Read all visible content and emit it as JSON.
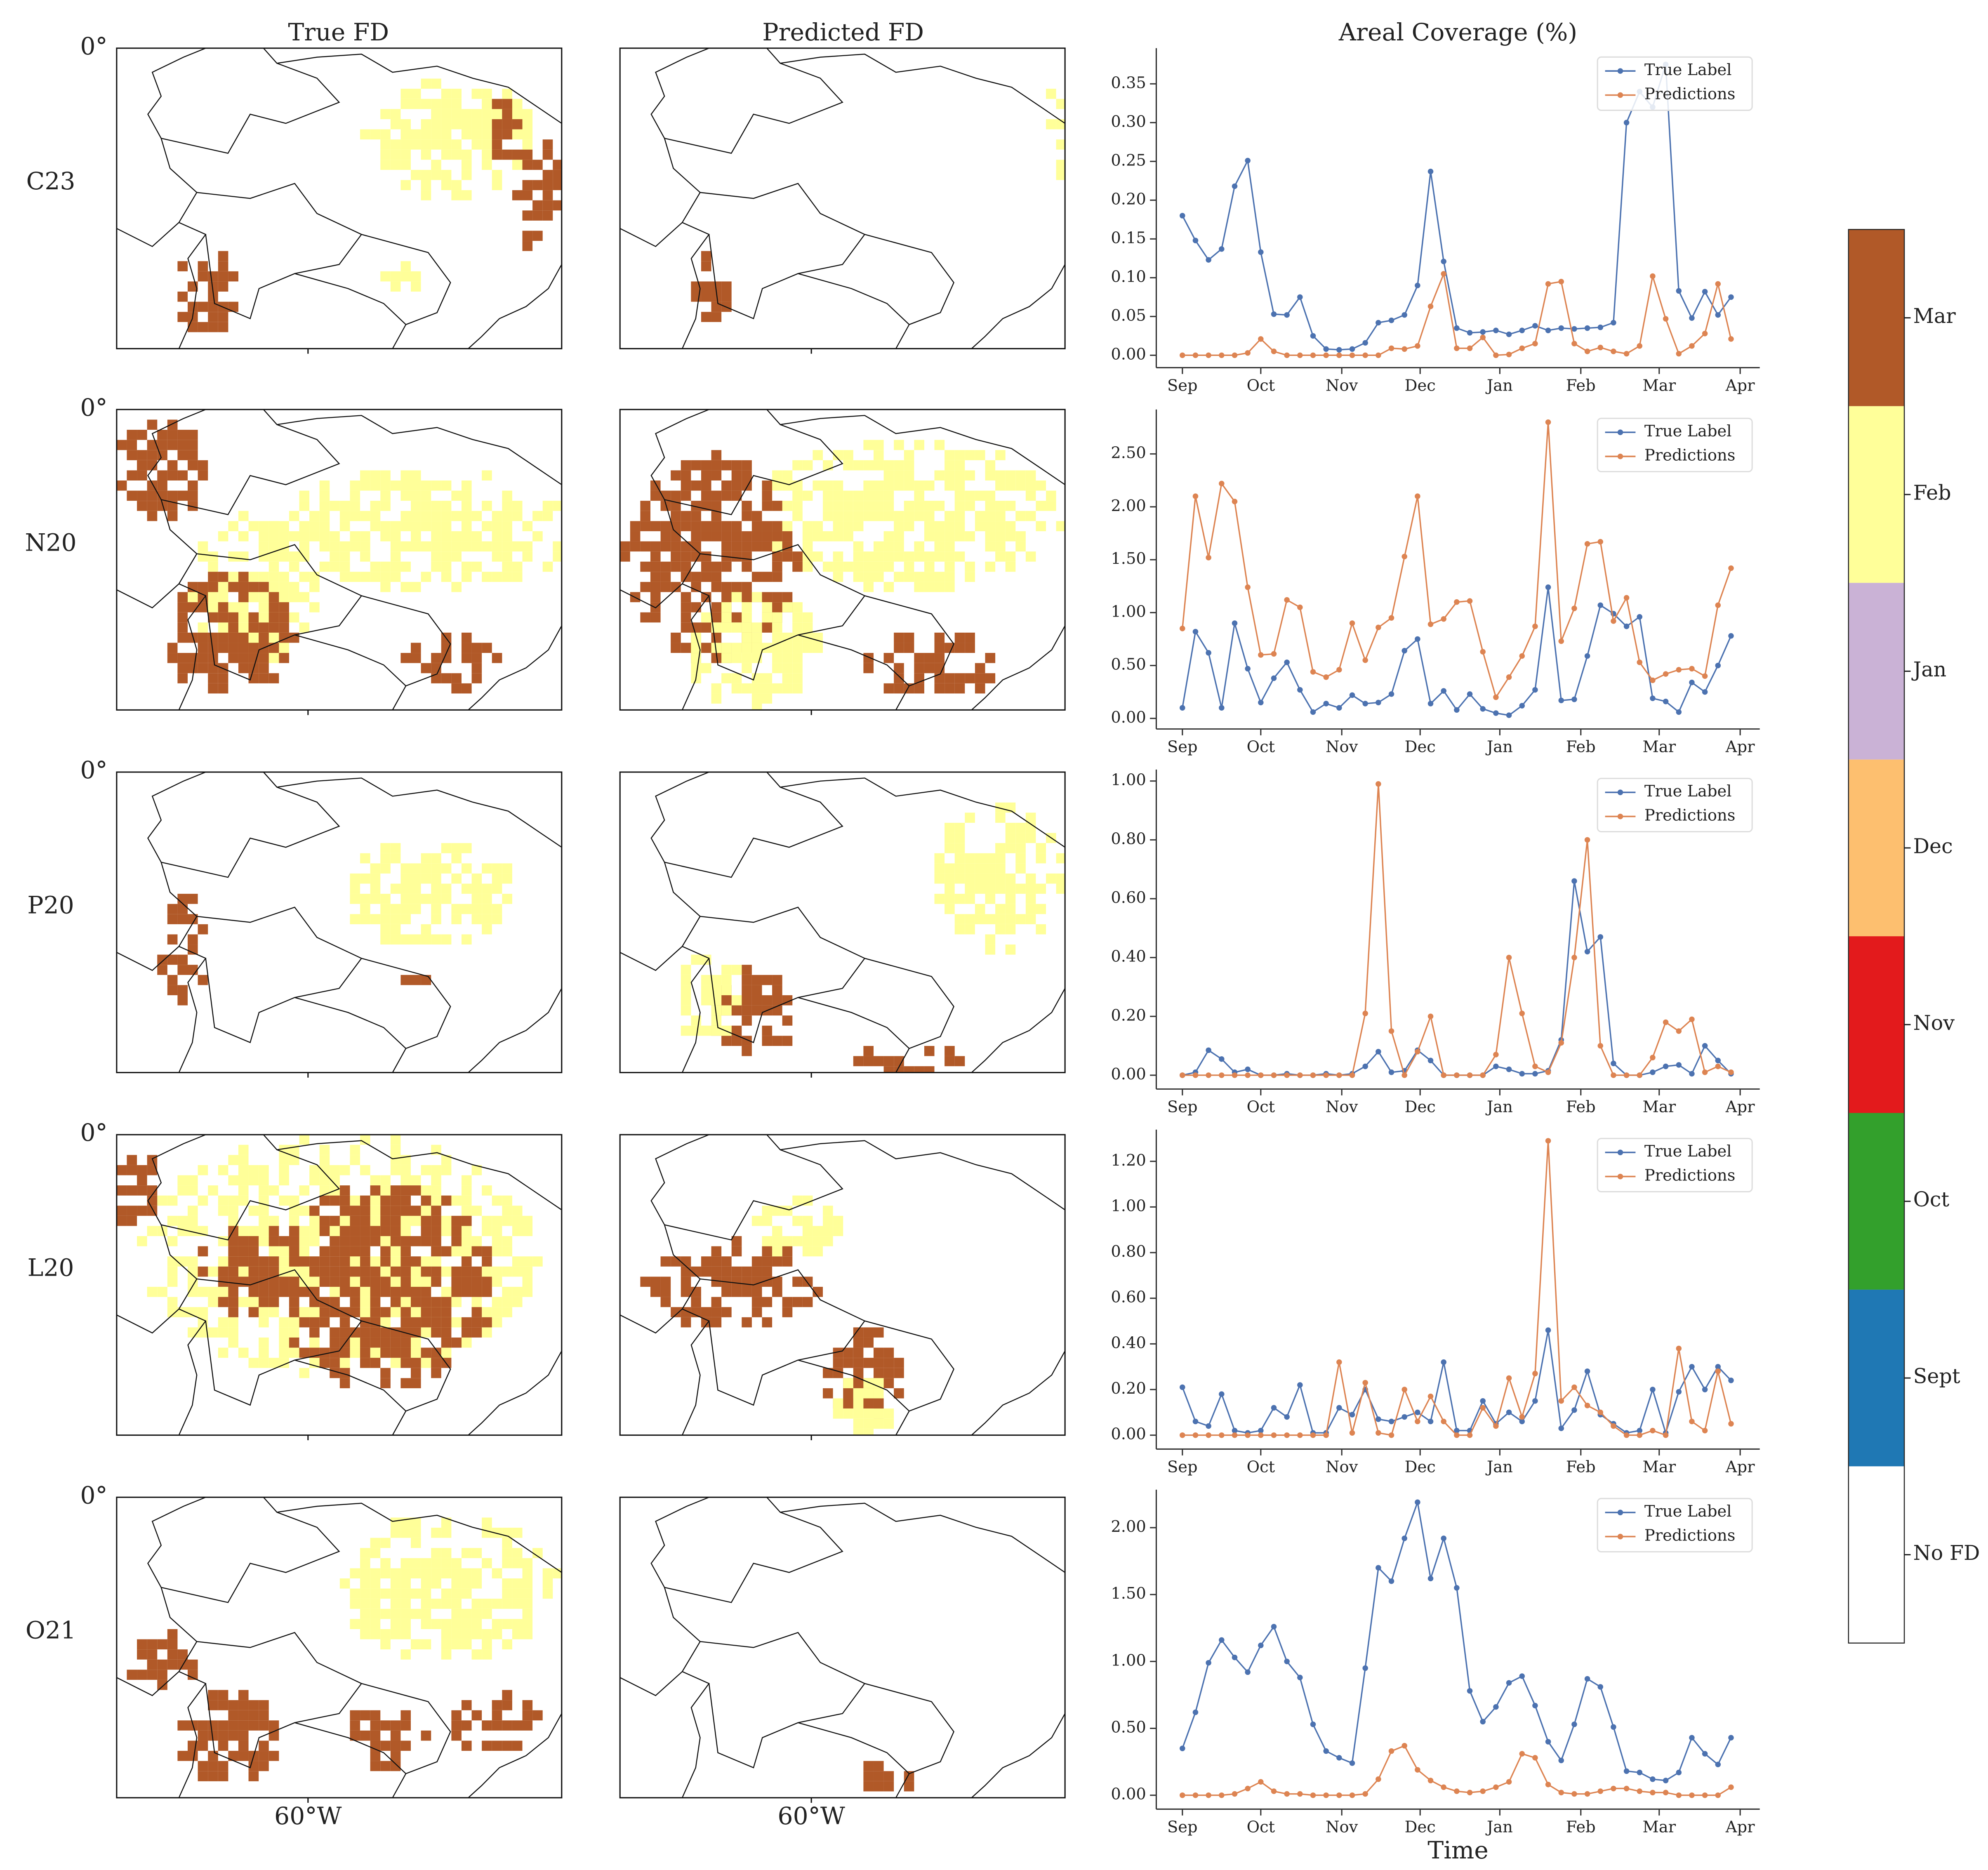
{
  "figure": {
    "column_titles": [
      "True FD",
      "Predicted FD",
      "Areal Coverage (%)"
    ],
    "row_labels": [
      "C23",
      "N20",
      "P20",
      "L20",
      "O21"
    ],
    "lat_label": "0°",
    "lon_label": "60°W",
    "colorbar": {
      "labels": [
        "Mar",
        "Feb",
        "Jan",
        "Dec",
        "Nov",
        "Oct",
        "Sept",
        "No FD"
      ],
      "colors": [
        "#b15928",
        "#ffff99",
        "#cab2d6",
        "#fdbf6f",
        "#e31a1c",
        "#33a02c",
        "#1f78b4",
        "#ffffff"
      ]
    }
  },
  "chart_data": [
    {
      "type": "line",
      "legend": "upper right",
      "categories": [
        null,
        null,
        null,
        null,
        null,
        null,
        null,
        null,
        null,
        null,
        null,
        null,
        null,
        null,
        null,
        null,
        null,
        null,
        null,
        null,
        null,
        null,
        null,
        null,
        null,
        null,
        null,
        null,
        null,
        null,
        null,
        null,
        null,
        null,
        null,
        null,
        null,
        null,
        null,
        null,
        null,
        null,
        null
      ],
      "xlim": [
        -2,
        44.2
      ],
      "xticks": [
        {
          "value": 0,
          "label": "Sep"
        },
        {
          "value": 6,
          "label": "Oct"
        },
        {
          "value": 12.2,
          "label": "Nov"
        },
        {
          "value": 18.2,
          "label": "Dec"
        },
        {
          "value": 24.3,
          "label": "Jan"
        },
        {
          "value": 30.5,
          "label": "Feb"
        },
        {
          "value": 36.5,
          "label": "Mar"
        },
        {
          "value": 42.7,
          "label": "Apr"
        }
      ],
      "ylim": [
        -0.016,
        0.396
      ],
      "yticks": [
        {
          "value": 0,
          "label": "0.00"
        },
        {
          "value": 0.05,
          "label": "0.05"
        },
        {
          "value": 0.1,
          "label": "0.10"
        },
        {
          "value": 0.15,
          "label": "0.15"
        },
        {
          "value": 0.2,
          "label": "0.20"
        },
        {
          "value": 0.25,
          "label": "0.25"
        },
        {
          "value": 0.3,
          "label": "0.30"
        },
        {
          "value": 0.35,
          "label": "0.35"
        }
      ],
      "series": [
        {
          "name": "True Label",
          "color": "#4c72b0",
          "values": [
            0.18,
            0.148,
            0.123,
            0.137,
            0.218,
            0.251,
            0.133,
            0.053,
            0.052,
            0.075,
            0.025,
            0.008,
            0.007,
            0.008,
            0.016,
            0.042,
            0.045,
            0.052,
            0.09,
            0.237,
            0.121,
            0.035,
            0.029,
            0.03,
            0.032,
            0.027,
            0.032,
            0.038,
            0.032,
            0.035,
            0.034,
            0.035,
            0.036,
            0.042,
            0.3,
            0.34,
            0.32,
            0.375,
            0.083,
            0.048,
            0.082,
            0.052,
            0.075
          ]
        },
        {
          "name": "Predictions",
          "color": "#dd8452",
          "values": [
            0,
            0,
            0,
            0,
            0,
            0.003,
            0.021,
            0.005,
            0,
            0,
            0,
            0,
            0,
            0,
            0,
            0,
            0.009,
            0.008,
            0.012,
            0.063,
            0.105,
            0.009,
            0.009,
            0.023,
            0,
            0.001,
            0.009,
            0.015,
            0.092,
            0.095,
            0.015,
            0.005,
            0.01,
            0.005,
            0.002,
            0.012,
            0.102,
            0.047,
            0.002,
            0.012,
            0.028,
            0.092,
            0.021
          ]
        }
      ]
    },
    {
      "type": "line",
      "legend": "upper right",
      "categories": [
        null,
        null,
        null,
        null,
        null,
        null,
        null,
        null,
        null,
        null,
        null,
        null,
        null,
        null,
        null,
        null,
        null,
        null,
        null,
        null,
        null,
        null,
        null,
        null,
        null,
        null,
        null,
        null,
        null,
        null,
        null,
        null,
        null,
        null,
        null,
        null,
        null,
        null,
        null,
        null,
        null,
        null,
        null
      ],
      "xlim": [
        -2,
        44.2
      ],
      "xticks": [
        {
          "value": 0,
          "label": "Sep"
        },
        {
          "value": 6,
          "label": "Oct"
        },
        {
          "value": 12.2,
          "label": "Nov"
        },
        {
          "value": 18.2,
          "label": "Dec"
        },
        {
          "value": 24.3,
          "label": "Jan"
        },
        {
          "value": 30.5,
          "label": "Feb"
        },
        {
          "value": 36.5,
          "label": "Mar"
        },
        {
          "value": 42.7,
          "label": "Apr"
        }
      ],
      "ylim": [
        -0.1,
        2.92
      ],
      "yticks": [
        {
          "value": 0,
          "label": "0.00"
        },
        {
          "value": 0.5,
          "label": "0.50"
        },
        {
          "value": 1,
          "label": "1.00"
        },
        {
          "value": 1.5,
          "label": "1.50"
        },
        {
          "value": 2,
          "label": "2.00"
        },
        {
          "value": 2.5,
          "label": "2.50"
        }
      ],
      "series": [
        {
          "name": "True Label",
          "color": "#4c72b0",
          "values": [
            0.1,
            0.82,
            0.62,
            0.1,
            0.9,
            0.47,
            0.15,
            0.38,
            0.53,
            0.27,
            0.06,
            0.14,
            0.1,
            0.22,
            0.14,
            0.15,
            0.23,
            0.64,
            0.75,
            0.14,
            0.26,
            0.08,
            0.23,
            0.09,
            0.05,
            0.03,
            0.12,
            0.27,
            1.24,
            0.17,
            0.18,
            0.59,
            1.07,
            0.99,
            0.87,
            0.96,
            0.19,
            0.16,
            0.06,
            0.34,
            0.25,
            0.5,
            0.78
          ]
        },
        {
          "name": "Predictions",
          "color": "#dd8452",
          "values": [
            0.85,
            2.1,
            1.52,
            2.22,
            2.05,
            1.24,
            0.6,
            0.61,
            1.12,
            1.05,
            0.44,
            0.39,
            0.46,
            0.9,
            0.55,
            0.86,
            0.95,
            1.53,
            2.1,
            0.89,
            0.94,
            1.1,
            1.11,
            0.63,
            0.2,
            0.39,
            0.59,
            0.87,
            2.8,
            0.73,
            1.04,
            1.65,
            1.67,
            0.92,
            1.14,
            0.53,
            0.36,
            0.42,
            0.46,
            0.47,
            0.4,
            1.07,
            1.42
          ]
        }
      ]
    },
    {
      "type": "line",
      "legend": "upper right",
      "categories": [
        null,
        null,
        null,
        null,
        null,
        null,
        null,
        null,
        null,
        null,
        null,
        null,
        null,
        null,
        null,
        null,
        null,
        null,
        null,
        null,
        null,
        null,
        null,
        null,
        null,
        null,
        null,
        null,
        null,
        null,
        null,
        null,
        null,
        null,
        null,
        null,
        null,
        null,
        null,
        null,
        null,
        null,
        null
      ],
      "xlim": [
        -2,
        44.2
      ],
      "xticks": [
        {
          "value": 0,
          "label": "Sep"
        },
        {
          "value": 6,
          "label": "Oct"
        },
        {
          "value": 12.2,
          "label": "Nov"
        },
        {
          "value": 18.2,
          "label": "Dec"
        },
        {
          "value": 24.3,
          "label": "Jan"
        },
        {
          "value": 30.5,
          "label": "Feb"
        },
        {
          "value": 36.5,
          "label": "Mar"
        },
        {
          "value": 42.7,
          "label": "Apr"
        }
      ],
      "ylim": [
        -0.047,
        1.039
      ],
      "yticks": [
        {
          "value": 0,
          "label": "0.00"
        },
        {
          "value": 0.2,
          "label": "0.20"
        },
        {
          "value": 0.4,
          "label": "0.40"
        },
        {
          "value": 0.6,
          "label": "0.60"
        },
        {
          "value": 0.8,
          "label": "0.80"
        },
        {
          "value": 1,
          "label": "1.00"
        }
      ],
      "series": [
        {
          "name": "True Label",
          "color": "#4c72b0",
          "values": [
            0,
            0.01,
            0.085,
            0.055,
            0.01,
            0.02,
            0,
            0,
            0.005,
            0,
            0,
            0.005,
            0,
            0.005,
            0.03,
            0.08,
            0.01,
            0.015,
            0.085,
            0.05,
            0,
            0,
            0,
            0,
            0.03,
            0.02,
            0.005,
            0.005,
            0.015,
            0.12,
            0.66,
            0.42,
            0.47,
            0.04,
            0,
            0,
            0.01,
            0.03,
            0.035,
            0.005,
            0.1,
            0.05,
            0.005
          ]
        },
        {
          "name": "Predictions",
          "color": "#dd8452",
          "values": [
            0,
            0,
            0,
            0,
            0,
            0,
            0,
            0,
            0,
            0,
            0,
            0,
            0,
            0,
            0.21,
            0.99,
            0.15,
            0,
            0.08,
            0.2,
            0,
            0,
            0,
            0,
            0.07,
            0.4,
            0.21,
            0.03,
            0.01,
            0.11,
            0.4,
            0.8,
            0.1,
            0,
            0,
            0,
            0.06,
            0.18,
            0.15,
            0.19,
            0.01,
            0.03,
            0.01
          ]
        }
      ]
    },
    {
      "type": "line",
      "legend": "upper right",
      "categories": [
        null,
        null,
        null,
        null,
        null,
        null,
        null,
        null,
        null,
        null,
        null,
        null,
        null,
        null,
        null,
        null,
        null,
        null,
        null,
        null,
        null,
        null,
        null,
        null,
        null,
        null,
        null,
        null,
        null,
        null,
        null,
        null,
        null,
        null,
        null,
        null,
        null,
        null,
        null,
        null,
        null,
        null,
        null
      ],
      "xlim": [
        -2,
        44.2
      ],
      "xticks": [
        {
          "value": 0,
          "label": "Sep"
        },
        {
          "value": 6,
          "label": "Oct"
        },
        {
          "value": 12.2,
          "label": "Nov"
        },
        {
          "value": 18.2,
          "label": "Dec"
        },
        {
          "value": 24.3,
          "label": "Jan"
        },
        {
          "value": 30.5,
          "label": "Feb"
        },
        {
          "value": 36.5,
          "label": "Mar"
        },
        {
          "value": 42.7,
          "label": "Apr"
        }
      ],
      "ylim": [
        -0.061,
        1.339
      ],
      "yticks": [
        {
          "value": 0,
          "label": "0.00"
        },
        {
          "value": 0.2,
          "label": "0.20"
        },
        {
          "value": 0.4,
          "label": "0.40"
        },
        {
          "value": 0.6,
          "label": "0.60"
        },
        {
          "value": 0.8,
          "label": "0.80"
        },
        {
          "value": 1,
          "label": "1.00"
        },
        {
          "value": 1.2,
          "label": "1.20"
        }
      ],
      "series": [
        {
          "name": "True Label",
          "color": "#4c72b0",
          "values": [
            0.21,
            0.06,
            0.04,
            0.18,
            0.02,
            0.01,
            0.02,
            0.12,
            0.08,
            0.22,
            0.01,
            0.01,
            0.12,
            0.09,
            0.2,
            0.07,
            0.06,
            0.08,
            0.1,
            0.06,
            0.32,
            0.02,
            0.02,
            0.15,
            0.05,
            0.1,
            0.06,
            0.15,
            0.46,
            0.03,
            0.11,
            0.28,
            0.09,
            0.05,
            0.01,
            0.02,
            0.2,
            0.01,
            0.19,
            0.3,
            0.2,
            0.3,
            0.24
          ]
        },
        {
          "name": "Predictions",
          "color": "#dd8452",
          "values": [
            0,
            0,
            0,
            0,
            0,
            0,
            0,
            0,
            0,
            0,
            0,
            0,
            0.32,
            0.01,
            0.23,
            0.01,
            0,
            0.2,
            0.06,
            0.17,
            0.06,
            0,
            0,
            0.12,
            0.04,
            0.25,
            0.08,
            0.27,
            1.29,
            0.15,
            0.21,
            0.13,
            0.1,
            0.04,
            0,
            0,
            0.02,
            0,
            0.38,
            0.06,
            0.02,
            0.28,
            0.05
          ]
        }
      ]
    },
    {
      "type": "line",
      "legend": "upper right",
      "xlabel": "Time",
      "categories": [
        null,
        null,
        null,
        null,
        null,
        null,
        null,
        null,
        null,
        null,
        null,
        null,
        null,
        null,
        null,
        null,
        null,
        null,
        null,
        null,
        null,
        null,
        null,
        null,
        null,
        null,
        null,
        null,
        null,
        null,
        null,
        null,
        null,
        null,
        null,
        null,
        null,
        null,
        null,
        null,
        null,
        null,
        null
      ],
      "xlim": [
        -2,
        44.2
      ],
      "xticks": [
        {
          "value": 0,
          "label": "Sep"
        },
        {
          "value": 6,
          "label": "Oct"
        },
        {
          "value": 12.2,
          "label": "Nov"
        },
        {
          "value": 18.2,
          "label": "Dec"
        },
        {
          "value": 24.3,
          "label": "Jan"
        },
        {
          "value": 30.5,
          "label": "Feb"
        },
        {
          "value": 36.5,
          "label": "Mar"
        },
        {
          "value": 42.7,
          "label": "Apr"
        }
      ],
      "ylim": [
        -0.104,
        2.284
      ],
      "yticks": [
        {
          "value": 0,
          "label": "0.00"
        },
        {
          "value": 0.5,
          "label": "0.50"
        },
        {
          "value": 1,
          "label": "1.00"
        },
        {
          "value": 1.5,
          "label": "1.50"
        },
        {
          "value": 2,
          "label": "2.00"
        }
      ],
      "series": [
        {
          "name": "True Label",
          "color": "#4c72b0",
          "values": [
            0.35,
            0.62,
            0.99,
            1.16,
            1.03,
            0.92,
            1.12,
            1.26,
            1.0,
            0.88,
            0.53,
            0.33,
            0.28,
            0.24,
            0.95,
            1.7,
            1.6,
            1.92,
            2.19,
            1.62,
            1.92,
            1.55,
            0.78,
            0.55,
            0.66,
            0.84,
            0.89,
            0.67,
            0.4,
            0.26,
            0.53,
            0.87,
            0.81,
            0.51,
            0.18,
            0.17,
            0.12,
            0.11,
            0.17,
            0.43,
            0.31,
            0.23,
            0.43
          ]
        },
        {
          "name": "Predictions",
          "color": "#dd8452",
          "values": [
            0,
            0,
            0,
            0,
            0.01,
            0.05,
            0.1,
            0.03,
            0.01,
            0.01,
            0,
            0,
            0,
            0,
            0.01,
            0.12,
            0.33,
            0.37,
            0.19,
            0.11,
            0.06,
            0.03,
            0.02,
            0.03,
            0.06,
            0.1,
            0.31,
            0.28,
            0.08,
            0.02,
            0.01,
            0.01,
            0.03,
            0.05,
            0.05,
            0.03,
            0.02,
            0.02,
            0,
            0,
            0,
            0,
            0.06
          ]
        }
      ]
    }
  ]
}
